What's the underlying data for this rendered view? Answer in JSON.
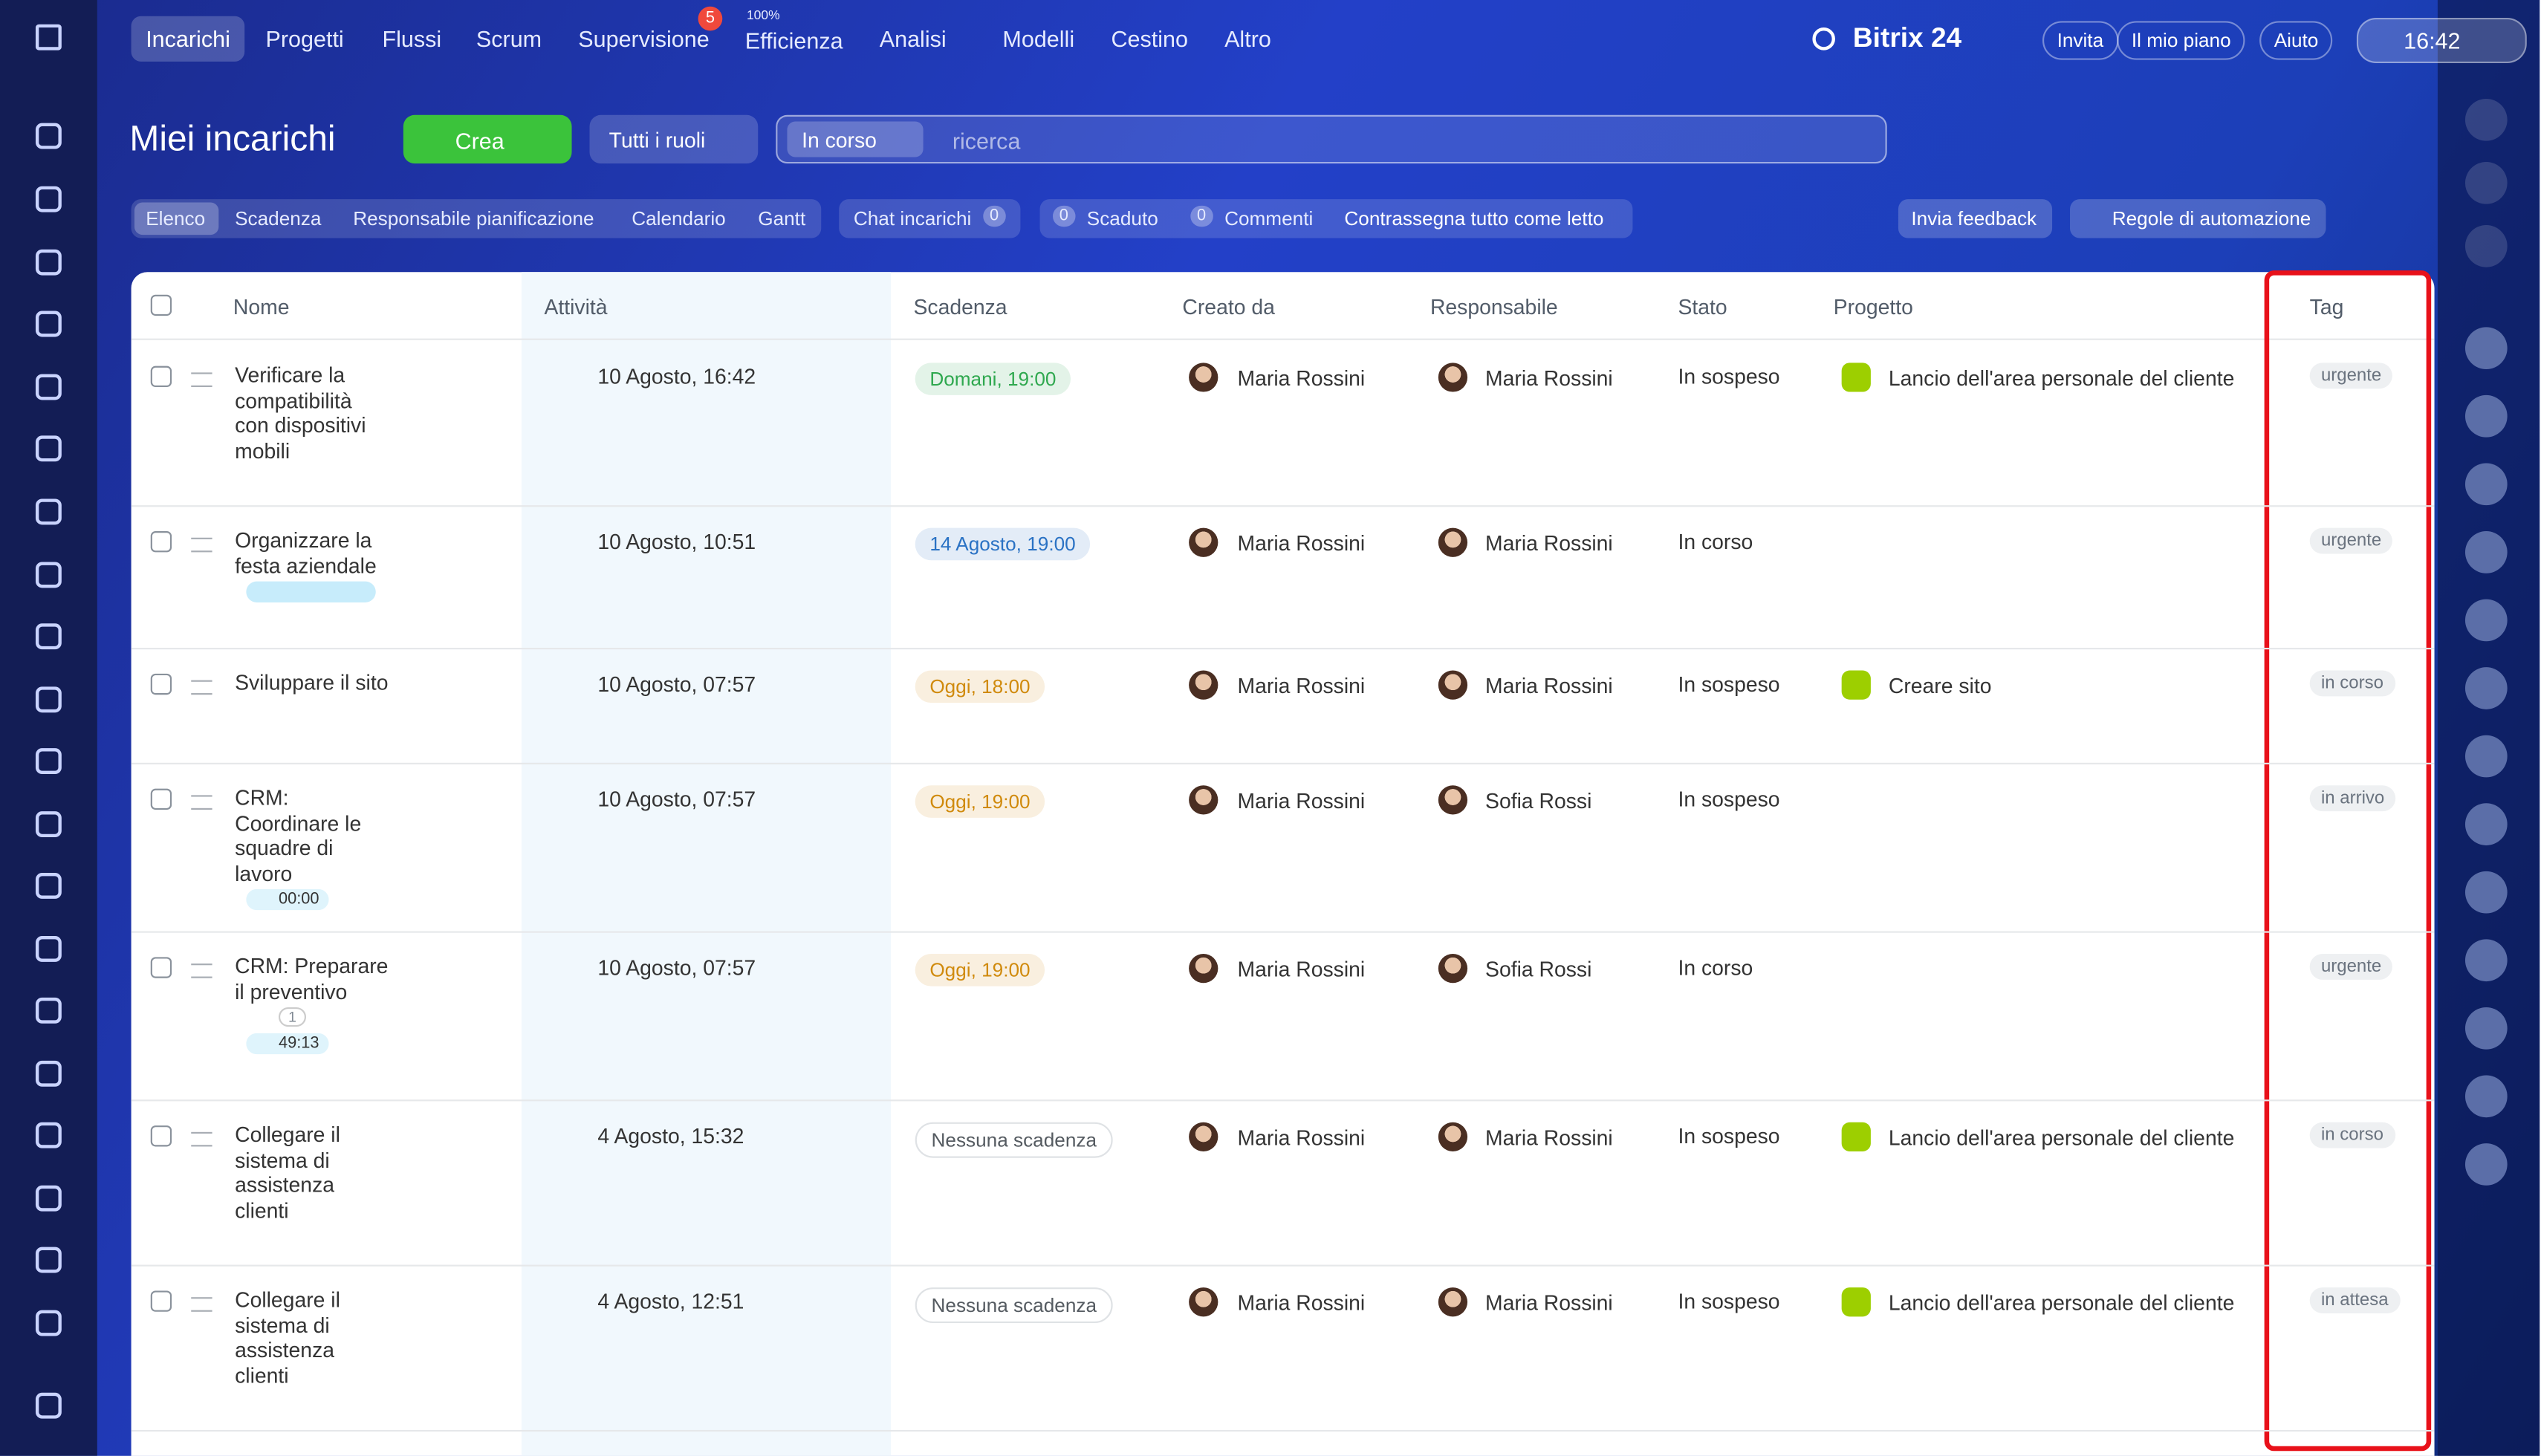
{
  "top_nav": {
    "items": [
      "Incarichi",
      "Progetti",
      "Flussi",
      "Scrum",
      "Supervisione",
      "Efficienza",
      "Analisi",
      "Modelli",
      "Cestino",
      "Altro"
    ],
    "supervision_badge": "5",
    "efficiency_label": "100%",
    "brand": "Bitrix 24",
    "buttons": [
      "Invita",
      "Il mio piano",
      "Aiuto"
    ],
    "time": "16:42"
  },
  "header": {
    "title": "Miei incarichi",
    "create": "Crea",
    "roles": "Tutti i ruoli",
    "filter_chip": "In corso",
    "search_placeholder": "ricerca"
  },
  "tabs": {
    "views": [
      "Elenco",
      "Scadenza",
      "Responsabile pianificazione",
      "Calendario",
      "Gantt"
    ],
    "chat": "Chat incarichi",
    "chat_count": "0",
    "overdue_count": "0",
    "overdue": "Scaduto",
    "comments_count": "0",
    "comments": "Commenti",
    "mark_read": "Contrassegna tutto come letto",
    "feedback": "Invia feedback",
    "automation": "Regole di automazione"
  },
  "table": {
    "columns": [
      "Nome",
      "Attività",
      "Scadenza",
      "Creato da",
      "Responsabile",
      "Stato",
      "Progetto",
      "Tag"
    ],
    "rows": [
      {
        "name": "Verificare la compatibilità con dispositivi mobili",
        "activity": "10 Agosto, 16:42",
        "deadline": "Domani, 19:00",
        "deadline_color": "#2fa84f",
        "created_by": "Maria Rossini",
        "responsible": "Maria Rossini",
        "status": "In sospeso",
        "project": "Lancio dell'area personale del cliente",
        "tag": "urgente"
      },
      {
        "name": "Organizzare la festa aziendale",
        "activity": "10 Agosto, 10:51",
        "deadline": "14 Agosto, 19:00",
        "deadline_color": "#2a72c4",
        "created_by": "Maria Rossini",
        "responsible": "Maria Rossini",
        "status": "In corso",
        "tag": "urgente"
      },
      {
        "name": "Sviluppare il sito",
        "activity": "10 Agosto, 07:57",
        "deadline": "Oggi, 18:00",
        "deadline_color": "#d08a0c",
        "created_by": "Maria Rossini",
        "responsible": "Maria Rossini",
        "status": "In sospeso",
        "project": "Creare sito",
        "tag": "in corso"
      },
      {
        "name": "CRM: Coordinare le squadre di lavoro",
        "timer": "00:00",
        "activity": "10 Agosto, 07:57",
        "deadline": "Oggi, 19:00",
        "deadline_color": "#d08a0c",
        "created_by": "Maria Rossini",
        "responsible": "Sofia Rossi",
        "status": "In sospeso",
        "tag": "in arrivo"
      },
      {
        "name": "CRM: Preparare il preventivo",
        "attachments": "1",
        "timer": "49:13",
        "activity": "10 Agosto, 07:57",
        "deadline": "Oggi, 19:00",
        "deadline_color": "#d08a0c",
        "created_by": "Maria Rossini",
        "responsible": "Sofia Rossi",
        "status": "In corso",
        "tag": "urgente"
      },
      {
        "name": "Collegare il sistema di assistenza clienti",
        "activity": "4 Agosto, 15:32",
        "deadline": "Nessuna scadenza",
        "deadline_color": "#555b61",
        "created_by": "Maria Rossini",
        "responsible": "Maria Rossini",
        "status": "In sospeso",
        "project": "Lancio dell'area personale del cliente",
        "tag": "in corso"
      },
      {
        "name": "Collegare il sistema di assistenza clienti",
        "activity": "4 Agosto, 12:51",
        "deadline": "Nessuna scadenza",
        "deadline_color": "#555b61",
        "created_by": "Maria Rossini",
        "responsible": "Maria Rossini",
        "status": "In sospeso",
        "project": "Lancio dell'area personale del cliente",
        "tag": "in attesa"
      }
    ]
  }
}
